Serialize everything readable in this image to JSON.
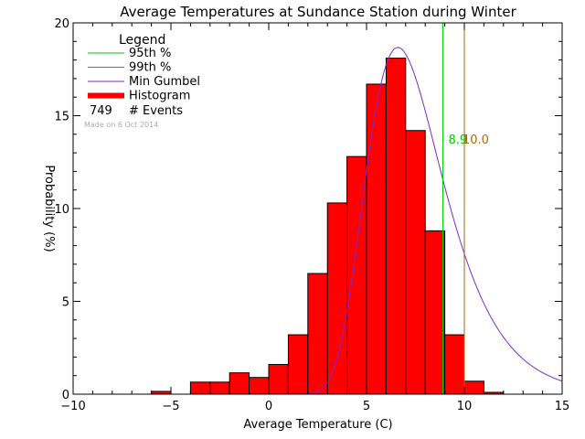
{
  "chart_data": {
    "type": "bar",
    "title": "Average Temperatures at Sundance Station during Winter",
    "xlabel": "Average Temperature (C)",
    "ylabel": "Probability (%)",
    "xlim": [
      -10,
      15
    ],
    "ylim": [
      0,
      20
    ],
    "x_ticks": [
      -10,
      -5,
      0,
      5,
      10,
      15
    ],
    "x_tick_labels": [
      "−10",
      "−5",
      "0",
      "5",
      "10",
      "15"
    ],
    "y_ticks": [
      0,
      5,
      10,
      15,
      20
    ],
    "y_tick_labels": [
      "0",
      "5",
      "10",
      "15",
      "20"
    ],
    "grid": false,
    "legend": {
      "title": "Legend",
      "placement": "top-left",
      "entries": [
        {
          "label": "95th %",
          "color": "#00cc00",
          "kind": "line"
        },
        {
          "label": "99th %",
          "color": "#a06a10",
          "kind": "line"
        },
        {
          "label": "Min Gumbel",
          "color": "#7a2ad0",
          "kind": "line"
        },
        {
          "label": "Histogram",
          "color": "#ff0000",
          "kind": "thick-line"
        }
      ],
      "events_count": "749",
      "events_label": "# Events",
      "made_on": "Made on 6 Oct 2014"
    },
    "histogram": {
      "color": "#ff0000",
      "edge_color": "#000000",
      "bins": [
        {
          "x0": -6,
          "x1": -5,
          "value": 0.15
        },
        {
          "x0": -5,
          "x1": -4,
          "value": 0.0
        },
        {
          "x0": -4,
          "x1": -3,
          "value": 0.65
        },
        {
          "x0": -3,
          "x1": -2,
          "value": 0.65
        },
        {
          "x0": -2,
          "x1": -1,
          "value": 1.15
        },
        {
          "x0": -1,
          "x1": 0,
          "value": 0.9
        },
        {
          "x0": 0,
          "x1": 1,
          "value": 1.6
        },
        {
          "x0": 1,
          "x1": 2,
          "value": 3.2
        },
        {
          "x0": 2,
          "x1": 3,
          "value": 6.5
        },
        {
          "x0": 3,
          "x1": 4,
          "value": 10.3
        },
        {
          "x0": 4,
          "x1": 5,
          "value": 12.8
        },
        {
          "x0": 5,
          "x1": 6,
          "value": 16.7
        },
        {
          "x0": 6,
          "x1": 7,
          "value": 18.1
        },
        {
          "x0": 7,
          "x1": 8,
          "value": 14.2
        },
        {
          "x0": 8,
          "x1": 9,
          "value": 8.8
        },
        {
          "x0": 9,
          "x1": 10,
          "value": 3.2
        },
        {
          "x0": 10,
          "x1": 11,
          "value": 0.7
        },
        {
          "x0": 11,
          "x1": 12,
          "value": 0.1
        }
      ]
    },
    "gumbel": {
      "color": "#7a2ad0",
      "mu": 6.6,
      "beta": 1.97,
      "scale": 100,
      "x_range": [
        -9,
        15
      ]
    },
    "percentiles": [
      {
        "name": "95th %",
        "value": 8.9,
        "label": "8.9",
        "color": "#00cc00"
      },
      {
        "name": "99th %",
        "value": 10.0,
        "label": "10.0",
        "color": "#a06a10"
      }
    ]
  }
}
